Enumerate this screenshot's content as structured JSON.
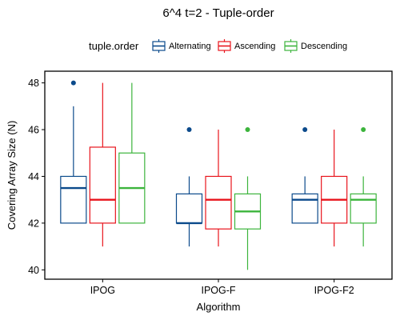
{
  "chart_data": {
    "type": "boxplot",
    "title": "6^4 t=2 - Tuple-order",
    "xlabel": "Algorithm",
    "ylabel": "Covering Array Size (N)",
    "ylim": [
      39.6,
      48.5
    ],
    "yticks": [
      40,
      42,
      44,
      46,
      48
    ],
    "categories": [
      "IPOG",
      "IPOG-F",
      "IPOG-F2"
    ],
    "legend": {
      "title": "tuple.order",
      "placement": "top",
      "entries": [
        "Alternating",
        "Ascending",
        "Descending"
      ]
    },
    "series": [
      {
        "name": "Alternating",
        "color": "#0b4a8b",
        "boxes": [
          {
            "min": 42,
            "q1": 42,
            "median": 43.5,
            "q3": 44,
            "max": 47,
            "outliers": [
              48
            ]
          },
          {
            "min": 41,
            "q1": 42,
            "median": 42,
            "q3": 43.25,
            "max": 44,
            "outliers": [
              46
            ]
          },
          {
            "min": 42,
            "q1": 42,
            "median": 43,
            "q3": 43.25,
            "max": 44,
            "outliers": [
              46
            ]
          }
        ]
      },
      {
        "name": "Ascending",
        "color": "#e8141c",
        "boxes": [
          {
            "min": 41,
            "q1": 42,
            "median": 43,
            "q3": 45.25,
            "max": 48,
            "outliers": []
          },
          {
            "min": 41,
            "q1": 41.75,
            "median": 43,
            "q3": 44,
            "max": 46,
            "outliers": []
          },
          {
            "min": 41,
            "q1": 42,
            "median": 43,
            "q3": 44,
            "max": 46,
            "outliers": []
          }
        ]
      },
      {
        "name": "Descending",
        "color": "#3cb43c",
        "boxes": [
          {
            "min": 42,
            "q1": 42,
            "median": 43.5,
            "q3": 45,
            "max": 48,
            "outliers": []
          },
          {
            "min": 40,
            "q1": 41.75,
            "median": 42.5,
            "q3": 43.25,
            "max": 44,
            "outliers": [
              46
            ]
          },
          {
            "min": 41,
            "q1": 42,
            "median": 43,
            "q3": 43.25,
            "max": 44,
            "outliers": [
              46
            ]
          }
        ]
      }
    ]
  }
}
